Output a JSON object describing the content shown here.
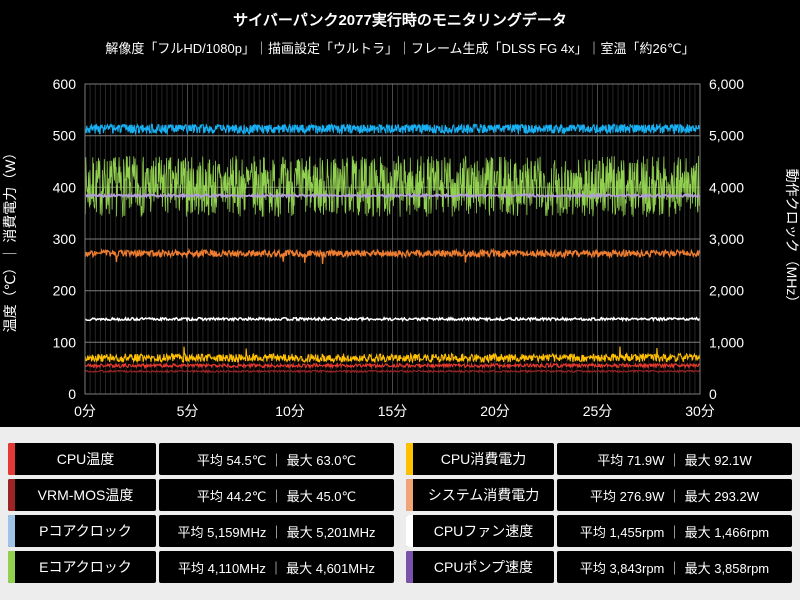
{
  "header": {
    "title": "サイバーパンク2077実行時のモニタリングデータ",
    "subtitle": "解像度「フルHD/1080p」｜描画設定「ウルトラ」｜フレーム生成「DLSS FG 4x」｜室温「約26℃」"
  },
  "chart_data": {
    "type": "line",
    "title": "サイバーパンク2077実行時のモニタリングデータ",
    "x_axis": {
      "min": 0,
      "max": 30,
      "tick_step": 5,
      "tick_suffix": "分",
      "minor_grid_step": 0.25
    },
    "y_left_axis": {
      "title": "温度（℃）｜ 消費電力（W）",
      "min": 0,
      "max": 600,
      "tick_step": 100
    },
    "y_right_axis": {
      "title": "動作クロック（MHz）",
      "min": 0,
      "max": 6000,
      "tick_step": 1000
    },
    "grid": {
      "plot_bg": "#000000",
      "h_color": "#7d7d7d",
      "v_color": "#262626",
      "v_major_color": "#4a4a4a"
    },
    "legend_position": "bottom",
    "series": [
      {
        "key": "e_core_clock",
        "name": "Eコアクロック",
        "unit": "MHz",
        "avg": 4110,
        "max": 4601,
        "color": "#92d050",
        "plot": {
          "base": 402,
          "amp": 59,
          "clamp_min": 338,
          "clamp_max": 461,
          "samples": 1500,
          "lw": 0.8,
          "seed": 7
        }
      },
      {
        "key": "p_core_clock",
        "name": "Pコアクロック",
        "unit": "MHz",
        "avg": 5159,
        "max": 5201,
        "color": "#18b0f2",
        "plot": {
          "base": 514,
          "amp": 10,
          "clamp_min": 503,
          "clamp_max": 521,
          "samples": 1400,
          "lw": 1.1,
          "seed": 3
        }
      },
      {
        "key": "cpu_pump_speed",
        "name": "CPUポンプ速度",
        "unit": "rpm",
        "avg": 3843,
        "max": 3858,
        "color": "#b39ddb",
        "plot": {
          "base": 384,
          "amp": 2.4,
          "samples": 700,
          "lw": 1.7,
          "seed": 5
        }
      },
      {
        "key": "system_power",
        "name": "システム消費電力",
        "unit": "W",
        "avg": 276.9,
        "max": 293.2,
        "color": "#ed7d31",
        "plot": {
          "base": 272,
          "amp": 6.5,
          "clamp_min": 250,
          "clamp_max": 293,
          "samples": 1000,
          "lw": 1.3,
          "seed": 9,
          "spike_prob": 0.005,
          "spike_val": 256,
          "spike_jitter": 8
        }
      },
      {
        "key": "cpu_fan_speed",
        "name": "CPUファン速度",
        "unit": "rpm",
        "avg": 1455,
        "max": 1466,
        "color": "#ffffff",
        "plot": {
          "base": 145,
          "amp": 2.6,
          "samples": 700,
          "lw": 1.5,
          "seed": 13
        }
      },
      {
        "key": "cpu_power",
        "name": "CPU消費電力",
        "unit": "W",
        "avg": 71.9,
        "max": 92.1,
        "color": "#ffc000",
        "plot": {
          "base": 70,
          "amp": 8,
          "clamp_min": 58,
          "clamp_max": 92,
          "samples": 1100,
          "lw": 1.1,
          "seed": 17,
          "spike_prob": 0.004,
          "spike_val": 89,
          "spike_jitter": 6
        }
      },
      {
        "key": "cpu_temp",
        "name": "CPU温度",
        "unit": "℃",
        "avg": 54.5,
        "max": 63.0,
        "color": "#e8392f",
        "plot": {
          "base": 55,
          "amp": 3.6,
          "clamp_min": 48,
          "clamp_max": 63,
          "samples": 1000,
          "lw": 1.1,
          "seed": 21
        }
      },
      {
        "key": "vrm_mos_temp",
        "name": "VRM-MOS温度",
        "unit": "℃",
        "avg": 44.2,
        "max": 45.0,
        "color": "#9c2424",
        "plot": {
          "base": 44,
          "amp": 2,
          "clamp_min": 41,
          "clamp_max": 45.5,
          "samples": 800,
          "lw": 1.1,
          "seed": 25
        }
      }
    ]
  },
  "legend": {
    "items": [
      {
        "key": "cpu_temp",
        "label": "CPU温度",
        "stats": "平均 54.5℃ ｜ 最大 63.0℃",
        "color": "#e53935"
      },
      {
        "key": "cpu_power",
        "label": "CPU消費電力",
        "stats": "平均 71.9W ｜ 最大 92.1W",
        "color": "#ffc000"
      },
      {
        "key": "vrm_mos_temp",
        "label": "VRM-MOS温度",
        "stats": "平均 44.2℃ ｜ 最大 45.0℃",
        "color": "#9c2424"
      },
      {
        "key": "system_power",
        "label": "システム消費電力",
        "stats": "平均 276.9W ｜ 最大 293.2W",
        "color": "#f2a479"
      },
      {
        "key": "p_core_clock",
        "label": "Pコアクロック",
        "stats": "平均 5,159MHz ｜ 最大 5,201MHz",
        "color": "#9dc3e6"
      },
      {
        "key": "cpu_fan_speed",
        "label": "CPUファン速度",
        "stats": "平均 1,455rpm ｜ 最大 1,466rpm",
        "color": "#ffffff"
      },
      {
        "key": "e_core_clock",
        "label": "Eコアクロック",
        "stats": "平均 4,110MHz ｜ 最大 4,601MHz",
        "color": "#92d050"
      },
      {
        "key": "cpu_pump_speed",
        "label": "CPUポンプ速度",
        "stats": "平均 3,843rpm ｜ 最大 3,858rpm",
        "color": "#7b52ab"
      }
    ]
  }
}
